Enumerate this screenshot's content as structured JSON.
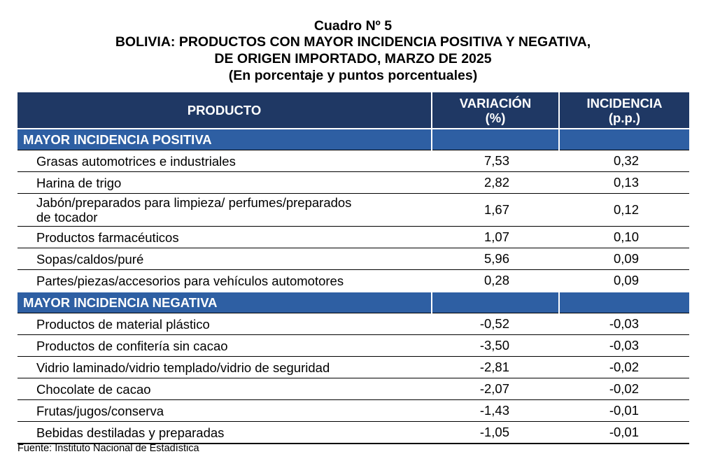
{
  "title": {
    "lines": [
      "Cuadro Nº 5",
      "BOLIVIA: PRODUCTOS CON MAYOR INCIDENCIA POSITIVA Y NEGATIVA,",
      "DE ORIGEN IMPORTADO, MARZO DE 2025",
      "(En porcentaje y puntos porcentuales)"
    ]
  },
  "table": {
    "header": {
      "producto": "PRODUCTO",
      "variacion": [
        "VARIACIÓN",
        "(%)"
      ],
      "incidencia": [
        "INCIDENCIA",
        "(p.p.)"
      ]
    },
    "positive": {
      "label": "MAYOR INCIDENCIA POSITIVA",
      "rows": [
        {
          "name": "Grasas automotrices e industriales",
          "variacion": "7,53",
          "incidencia": "0,32"
        },
        {
          "name": "Harina de trigo",
          "variacion": "2,82",
          "incidencia": "0,13"
        },
        {
          "name": "Jabón/preparados para limpieza/ perfumes/preparados",
          "name2": "de tocador",
          "variacion": "1,67",
          "incidencia": "0,12"
        },
        {
          "name": "Productos farmacéuticos",
          "variacion": "1,07",
          "incidencia": "0,10"
        },
        {
          "name": "Sopas/caldos/puré",
          "variacion": "5,96",
          "incidencia": "0,09"
        },
        {
          "name": "Partes/piezas/accesorios para vehículos automotores",
          "variacion": "0,28",
          "incidencia": "0,09"
        }
      ]
    },
    "negative": {
      "label": "MAYOR INCIDENCIA NEGATIVA",
      "rows": [
        {
          "name": "Productos de material plástico",
          "variacion": "-0,52",
          "incidencia": "-0,03"
        },
        {
          "name": "Productos de confitería sin cacao",
          "variacion": "-3,50",
          "incidencia": "-0,03"
        },
        {
          "name": "Vidrio laminado/vidrio templado/vidrio de seguridad",
          "variacion": "-2,81",
          "incidencia": "-0,02"
        },
        {
          "name": "Chocolate de cacao",
          "variacion": "-2,07",
          "incidencia": "-0,02"
        },
        {
          "name": "Frutas/jugos/conserva",
          "variacion": "-1,43",
          "incidencia": "-0,01"
        },
        {
          "name": "Bebidas destiladas y preparadas",
          "variacion": "-1,05",
          "incidencia": "-0,01"
        }
      ]
    }
  },
  "source": "Fuente: Instituto Nacional de Estadística",
  "colors": {
    "header_bg": "#1f3864",
    "section_bg": "#2e5fa3",
    "header_text": "#ffffff"
  }
}
